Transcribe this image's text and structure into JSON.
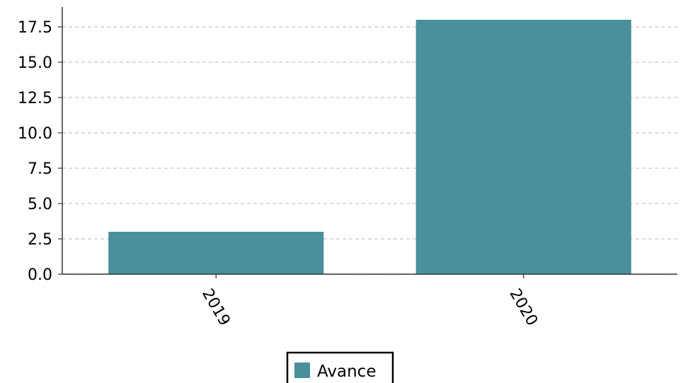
{
  "chart_data": {
    "type": "bar",
    "title": "",
    "xlabel": "",
    "ylabel": "",
    "categories": [
      "2019",
      "2020"
    ],
    "series": [
      {
        "name": "Avance",
        "values": [
          3,
          18
        ],
        "color": "#4a8f9c"
      }
    ],
    "ylim": [
      0,
      18.9
    ],
    "yticks": [
      0.0,
      2.5,
      5.0,
      7.5,
      10.0,
      12.5,
      15.0,
      17.5
    ],
    "ytick_labels": [
      "0.0",
      "2.5",
      "5.0",
      "7.5",
      "10.0",
      "12.5",
      "15.0",
      "17.5"
    ],
    "grid": "horizontal dashed",
    "legend": {
      "placement": "bottom-center",
      "entries": [
        "Avance"
      ]
    },
    "colors": {
      "bar": "#4a8f9c",
      "grid": "#c8c8c8",
      "axis": "#333333"
    }
  }
}
